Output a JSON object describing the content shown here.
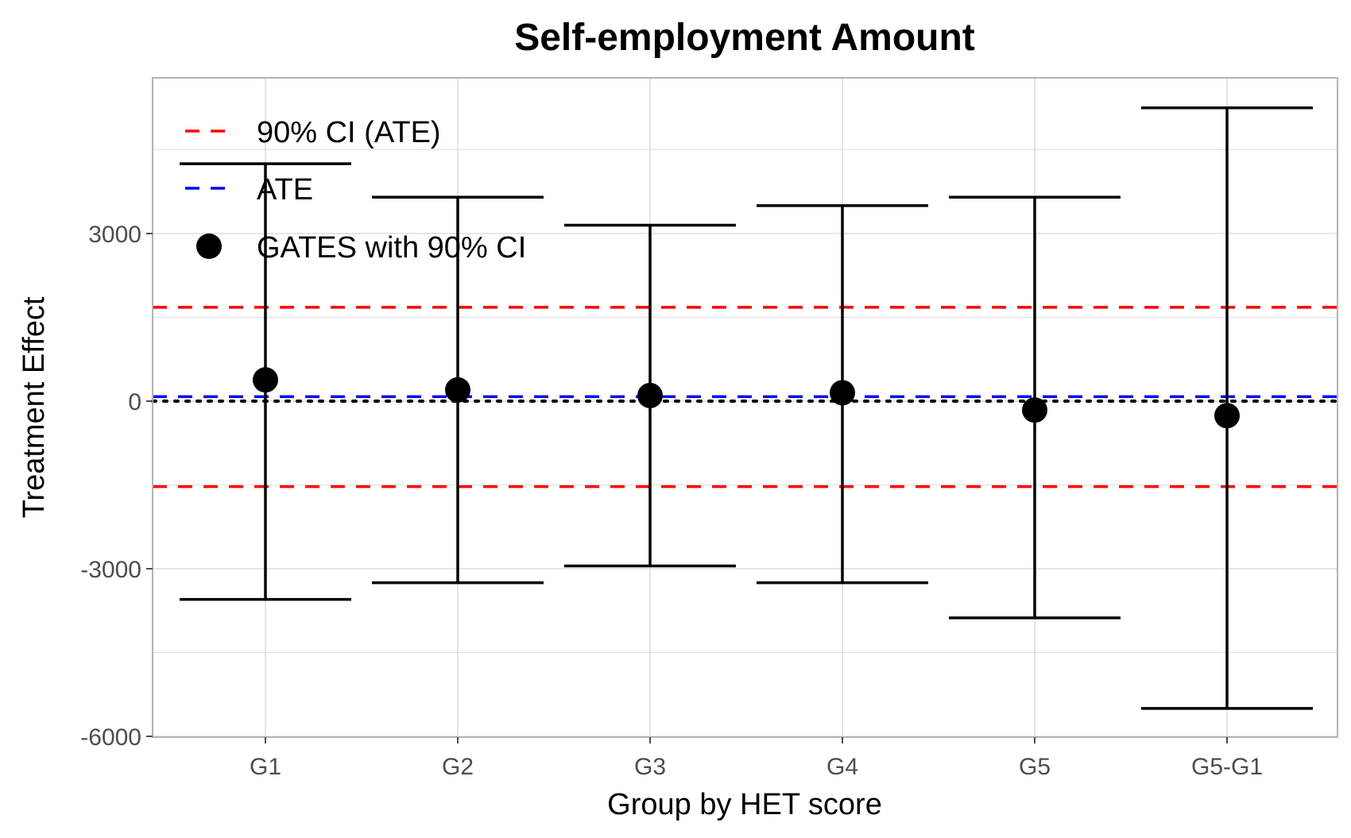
{
  "chart_data": {
    "type": "scatter",
    "title": "Self-employment Amount",
    "xlabel": "Group by HET score",
    "ylabel": "Treatment Effect",
    "categories": [
      "G1",
      "G2",
      "G3",
      "G4",
      "G5",
      "G5-G1"
    ],
    "ylim": [
      -6000,
      5600
    ],
    "yticks": [
      -6000,
      -3000,
      0,
      3000
    ],
    "series": [
      {
        "name": "GATES with 90% CI",
        "type": "errorbar",
        "values": [
          380,
          200,
          100,
          150,
          -160,
          -260
        ],
        "lower": [
          -3550,
          -3250,
          -2950,
          -3250,
          -3880,
          -5500
        ],
        "upper": [
          4250,
          3650,
          3150,
          3500,
          3650,
          5250
        ]
      }
    ],
    "reference_lines": [
      {
        "name": "ATE",
        "value": 80,
        "style": "dashed",
        "color": "#0000ff"
      },
      {
        "name": "90% CI (ATE)",
        "value": 1680,
        "style": "dashed",
        "color": "#ff0000"
      },
      {
        "name": "90% CI (ATE)",
        "value": -1530,
        "style": "dashed",
        "color": "#ff0000"
      },
      {
        "name": "",
        "value": 0,
        "style": "dotted",
        "color": "#000000"
      }
    ],
    "legend": {
      "placement": "top-left",
      "entries": [
        {
          "label": "90% CI (ATE)",
          "symbol": "dashed-line",
          "color": "#ff0000"
        },
        {
          "label": "ATE",
          "symbol": "dashed-line",
          "color": "#0000ff"
        },
        {
          "label": "GATES with 90% CI",
          "symbol": "dot",
          "color": "#000000"
        }
      ]
    },
    "grid": true,
    "colors": {
      "ci_ate": "#ff0000",
      "ate": "#0000ff",
      "gates": "#000000",
      "grid": "#dedede",
      "panel_border": "#b3b3b3"
    }
  }
}
